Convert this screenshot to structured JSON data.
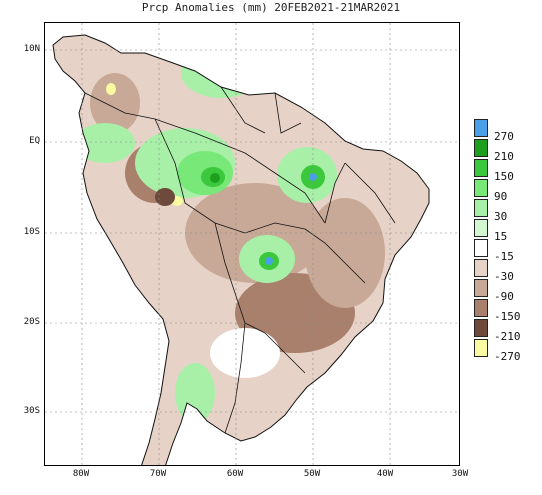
{
  "title": "Prcp Anomalies (mm) 20FEB2021-21MAR2021",
  "latitude_labels": [
    "10N",
    "EQ",
    "10S",
    "20S",
    "30S"
  ],
  "longitude_labels": [
    "80W",
    "70W",
    "60W",
    "50W",
    "40W",
    "30W"
  ],
  "legend": {
    "labels": [
      "270",
      "210",
      "150",
      "90",
      "30",
      "15",
      "-15",
      "-30",
      "-90",
      "-150",
      "-210",
      "-270"
    ],
    "colors": [
      "#4aa0e8",
      "#1ea01e",
      "#3cc83c",
      "#78e878",
      "#a8f0a8",
      "#d2f8d2",
      "#ffffff",
      "#e6d2c6",
      "#c8a896",
      "#a8806c",
      "#6e4a3c",
      "#fafaa0"
    ]
  },
  "colors": {
    "land_base": "#e6d2c6",
    "ocean": "#ffffff",
    "border": "#111111",
    "grid": "#888888"
  },
  "icons": [
    "map-grid",
    "country-border"
  ]
}
